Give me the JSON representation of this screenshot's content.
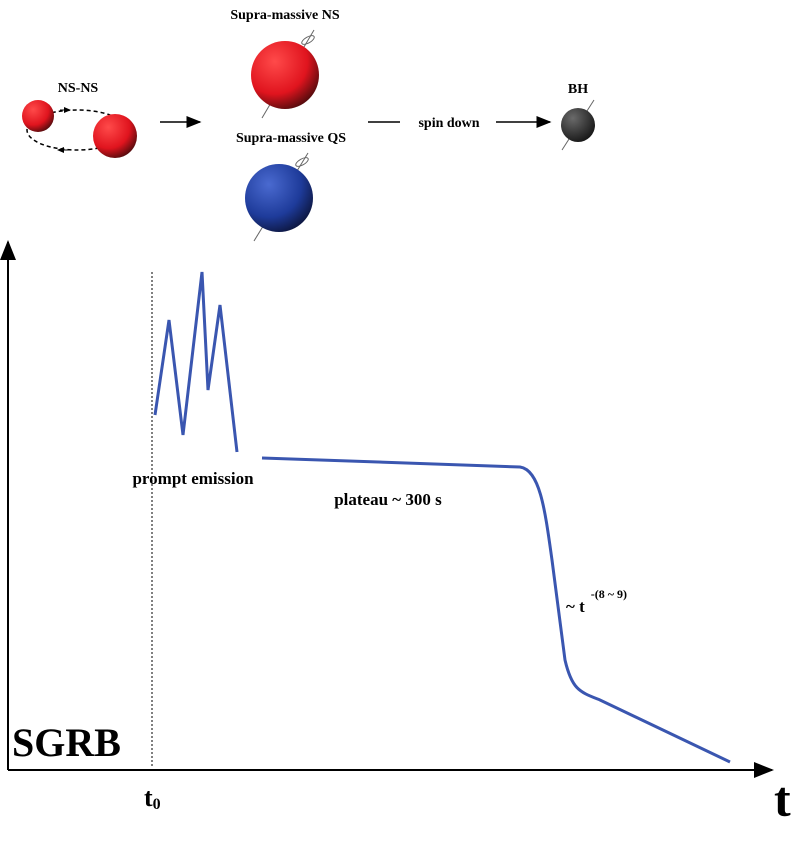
{
  "labels": {
    "ns_ns": "NS-NS",
    "supra_ns": "Supra-massive NS",
    "supra_qs": "Supra-massive QS",
    "spin_down": "spin down",
    "bh": "BH",
    "prompt": "prompt emission",
    "plateau": "plateau ~ 300 s",
    "decay": {
      "text": "~ t",
      "superscript": "-(8 ~ 9)"
    },
    "sgrb": "SGRB",
    "t0": {
      "text": "t",
      "subscript": "0"
    },
    "t_axis": "t"
  }
}
